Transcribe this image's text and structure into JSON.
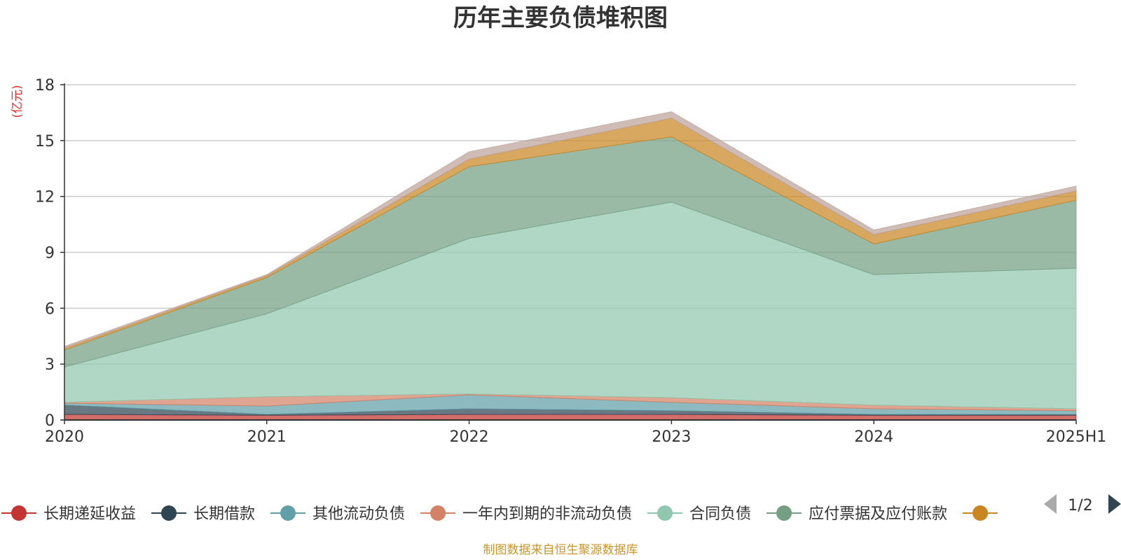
{
  "colors": {
    "unit": "#e03030",
    "source": "#c8962a",
    "nav_active": "#2f4554",
    "nav_inactive": "#aaaaaa",
    "grid": "#cccccc",
    "axis": "#333333"
  },
  "legend": {
    "page_indicator": "1/2",
    "prev_icon": "triangle-left",
    "next_icon": "triangle-right"
  },
  "source_note": "制图数据来自恒生聚源数据库",
  "chart_data": {
    "type": "area",
    "stacked": true,
    "title": "历年主要负债堆积图",
    "unit_label": "(亿元)",
    "x": [
      "2020",
      "2021",
      "2022",
      "2023",
      "2024",
      "2025H1"
    ],
    "ylim": [
      0,
      18
    ],
    "yticks": [
      0,
      3,
      6,
      9,
      12,
      15,
      18
    ],
    "grid": true,
    "legend_position": "bottom",
    "series": [
      {
        "name": "长期递延收益",
        "color": "#c23531",
        "values": [
          0.3,
          0.25,
          0.3,
          0.3,
          0.25,
          0.25
        ]
      },
      {
        "name": "长期借款",
        "color": "#2f4554",
        "values": [
          0.5,
          0.05,
          0.3,
          0.2,
          0.05,
          0.05
        ]
      },
      {
        "name": "其他流动负债",
        "color": "#61a0a8",
        "values": [
          0.1,
          0.45,
          0.75,
          0.45,
          0.3,
          0.2
        ]
      },
      {
        "name": "一年内到期的非流动负债",
        "color": "#d48265",
        "values": [
          0.05,
          0.5,
          0.05,
          0.25,
          0.2,
          0.1
        ]
      },
      {
        "name": "合同负债",
        "color": "#91c7ae",
        "values": [
          1.9,
          4.45,
          8.35,
          10.5,
          7.0,
          7.55
        ]
      },
      {
        "name": "应付票据及应付账款",
        "color": "#749f83",
        "values": [
          0.9,
          1.95,
          3.85,
          3.5,
          1.65,
          3.65
        ]
      },
      {
        "name": "",
        "color": "#ca8622",
        "values": [
          0.1,
          0.1,
          0.4,
          1.0,
          0.5,
          0.5
        ]
      },
      {
        "name": "",
        "color": "#bda29a",
        "values": [
          0.1,
          0.05,
          0.4,
          0.35,
          0.25,
          0.25
        ]
      }
    ]
  }
}
